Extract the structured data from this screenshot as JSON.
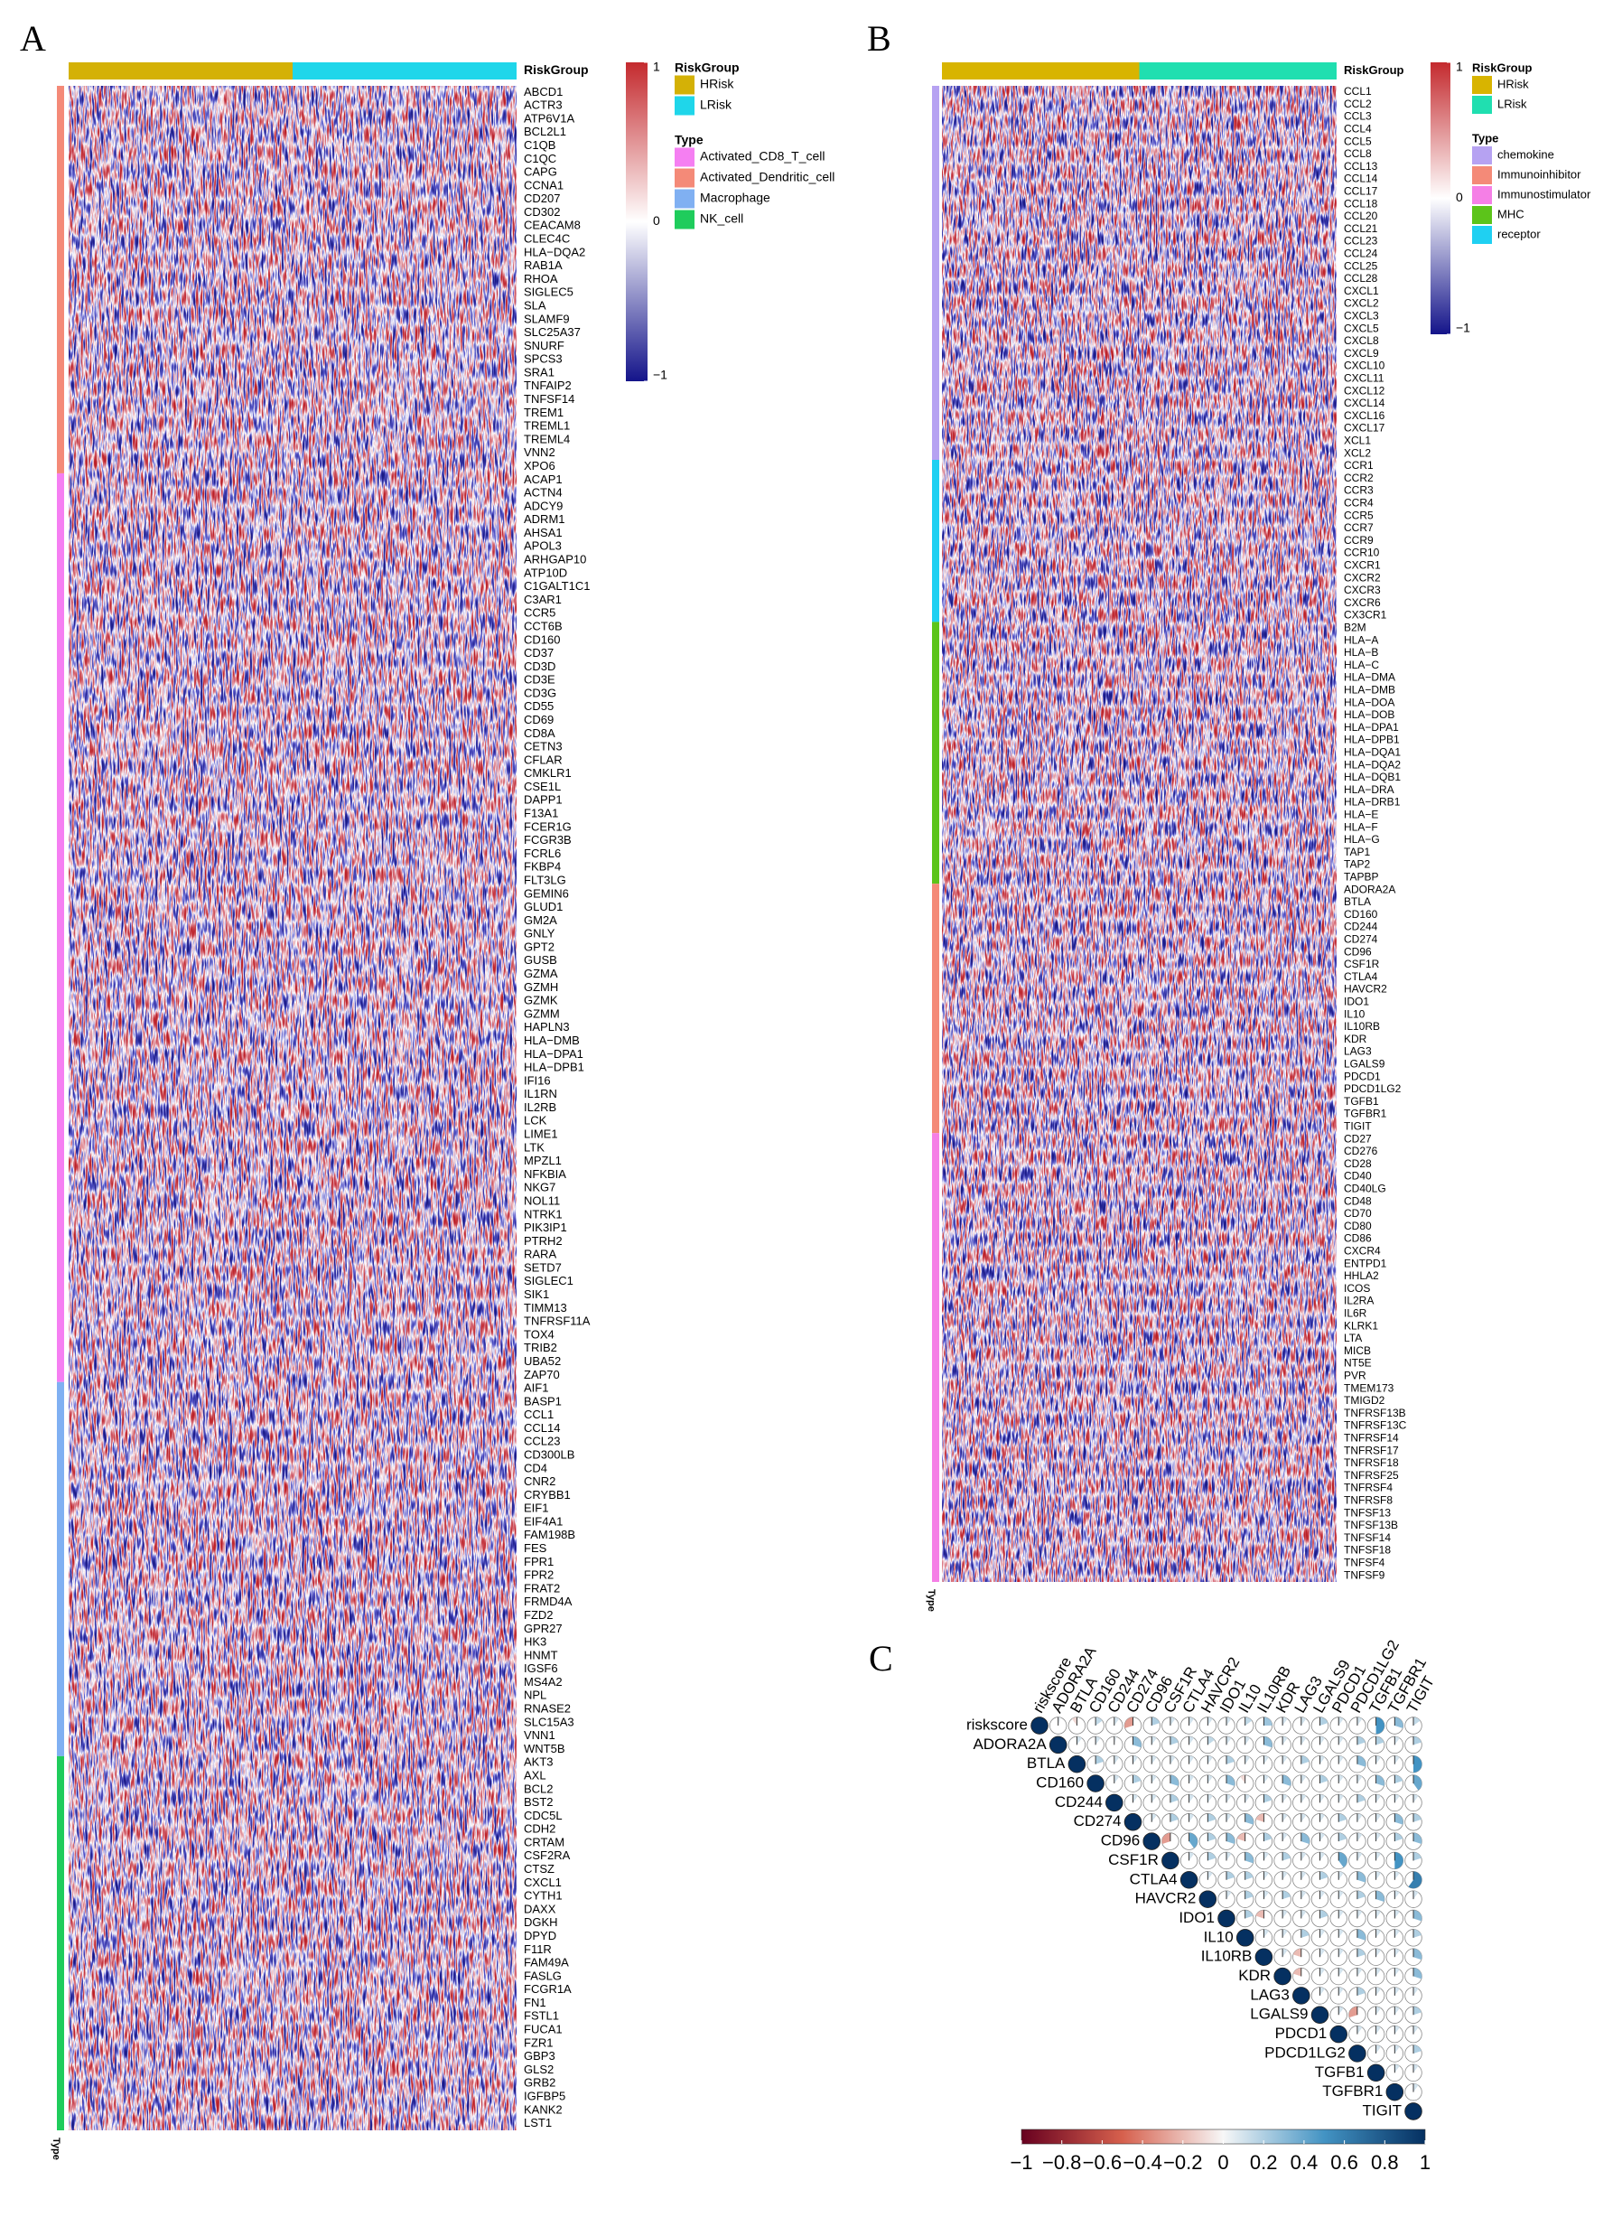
{
  "panel_labels": [
    "A",
    "B",
    "C"
  ],
  "chart_data": [
    {
      "type": "heatmap",
      "risk_title": "RiskGroup",
      "type_title": "Type",
      "risk_groups": [
        {
          "name": "HRisk",
          "color": "#d4b106"
        },
        {
          "name": "LRisk",
          "color": "#1fd6ea"
        }
      ],
      "type_legend": [
        {
          "name": "Activated_CD8_T_cell",
          "color": "#f57ff2"
        },
        {
          "name": "Activated_Dendritic_cell",
          "color": "#f48a78"
        },
        {
          "name": "Macrophage",
          "color": "#80b0f2"
        },
        {
          "name": "NK_cell",
          "color": "#1fcc5c"
        }
      ],
      "row_blocks": [
        {
          "type": "Activated_Dendritic_cell",
          "genes": [
            "ABCD1",
            "ACTR3",
            "ATP6V1A",
            "BCL2L1",
            "C1QB",
            "C1QC",
            "CAPG",
            "CCNA1",
            "CD207",
            "CD302",
            "CEACAM8",
            "CLEC4C",
            "HLA−DQA2",
            "RAB1A",
            "RHOA",
            "SIGLEC5",
            "SLA",
            "SLAMF9",
            "SLC25A37",
            "SNURF",
            "SPCS3",
            "SRA1",
            "TNFAIP2",
            "TNFSF14",
            "TREM1",
            "TREML1",
            "TREML4",
            "VNN2",
            "XPO6"
          ]
        },
        {
          "type": "Activated_CD8_T_cell",
          "genes": [
            "ACAP1",
            "ACTN4",
            "ADCY9",
            "ADRM1",
            "AHSA1",
            "APOL3",
            "ARHGAP10",
            "ATP10D",
            "C1GALT1C1",
            "C3AR1",
            "CCR5",
            "CCT6B",
            "CD160",
            "CD37",
            "CD3D",
            "CD3E",
            "CD3G",
            "CD55",
            "CD69",
            "CD8A",
            "CETN3",
            "CFLAR",
            "CMKLR1",
            "CSE1L",
            "DAPP1",
            "F13A1",
            "FCER1G",
            "FCGR3B",
            "FCRL6",
            "FKBP4",
            "FLT3LG",
            "GEMIN6",
            "GLUD1",
            "GM2A",
            "GNLY",
            "GPT2",
            "GUSB",
            "GZMA",
            "GZMH",
            "GZMK",
            "GZMM",
            "HAPLN3",
            "HLA−DMB",
            "HLA−DPA1",
            "HLA−DPB1",
            "IFI16",
            "IL1RN",
            "IL2RB",
            "LCK",
            "LIME1",
            "LTK",
            "MPZL1",
            "NFKBIA",
            "NKG7",
            "NOL11",
            "NTRK1",
            "PIK3IP1",
            "PTRH2",
            "RARA",
            "SETD7",
            "SIGLEC1",
            "SIK1",
            "TIMM13",
            "TNFRSF11A",
            "TOX4",
            "TRIB2",
            "UBA52",
            "ZAP70"
          ]
        },
        {
          "type": "Macrophage",
          "genes": [
            "AIF1",
            "BASP1",
            "CCL1",
            "CCL14",
            "CCL23",
            "CD300LB",
            "CD4",
            "CNR2",
            "CRYBB1",
            "EIF1",
            "EIF4A1",
            "FAM198B",
            "FES",
            "FPR1",
            "FPR2",
            "FRAT2",
            "FRMD4A",
            "FZD2",
            "GPR27",
            "HK3",
            "HNMT",
            "IGSF6",
            "MS4A2",
            "NPL",
            "RNASE2",
            "SLC15A3",
            "VNN1",
            "WNT5B"
          ]
        },
        {
          "type": "NK_cell",
          "genes": [
            "AKT3",
            "AXL",
            "BCL2",
            "BST2",
            "CDC5L",
            "CDH2",
            "CRTAM",
            "CSF2RA",
            "CTSZ",
            "CXCL1",
            "CYTH1",
            "DAXX",
            "DGKH",
            "DPYD",
            "F11R",
            "FAM49A",
            "FASLG",
            "FCGR1A",
            "FN1",
            "FSTL1",
            "FUCA1",
            "FZR1",
            "GBP3",
            "GLS2",
            "GRB2",
            "IGFBP5",
            "KANK2",
            "LST1"
          ]
        }
      ],
      "colorbar": {
        "lim": [
          -1,
          1
        ],
        "ticks": [
          1,
          0,
          {
            "value": -1,
            "label": "−1"
          }
        ],
        "colors": [
          "#14148a",
          "#ffffff",
          "#c42a2e"
        ]
      }
    },
    {
      "type": "heatmap",
      "risk_title": "RiskGroup",
      "type_title": "Type",
      "risk_groups": [
        {
          "name": "HRisk",
          "color": "#d8b400"
        },
        {
          "name": "LRisk",
          "color": "#20dfb0"
        }
      ],
      "type_legend": [
        {
          "name": "chemokine",
          "color": "#b6a2f2"
        },
        {
          "name": "Immunoinhibitor",
          "color": "#f48a78"
        },
        {
          "name": "Immunostimulator",
          "color": "#f57fe6"
        },
        {
          "name": "MHC",
          "color": "#5cc41a"
        },
        {
          "name": "receptor",
          "color": "#1fd0f2"
        }
      ],
      "row_blocks": [
        {
          "type": "chemokine",
          "genes": [
            "CCL1",
            "CCL2",
            "CCL3",
            "CCL4",
            "CCL5",
            "CCL8",
            "CCL13",
            "CCL14",
            "CCL17",
            "CCL18",
            "CCL20",
            "CCL21",
            "CCL23",
            "CCL24",
            "CCL25",
            "CCL28",
            "CXCL1",
            "CXCL2",
            "CXCL3",
            "CXCL5",
            "CXCL8",
            "CXCL9",
            "CXCL10",
            "CXCL11",
            "CXCL12",
            "CXCL14",
            "CXCL16",
            "CXCL17",
            "XCL1",
            "XCL2"
          ]
        },
        {
          "type": "receptor",
          "genes": [
            "CCR1",
            "CCR2",
            "CCR3",
            "CCR4",
            "CCR5",
            "CCR7",
            "CCR9",
            "CCR10",
            "CXCR1",
            "CXCR2",
            "CXCR3",
            "CXCR6",
            "CX3CR1"
          ]
        },
        {
          "type": "MHC",
          "genes": [
            "B2M",
            "HLA−A",
            "HLA−B",
            "HLA−C",
            "HLA−DMA",
            "HLA−DMB",
            "HLA−DOA",
            "HLA−DOB",
            "HLA−DPA1",
            "HLA−DPB1",
            "HLA−DQA1",
            "HLA−DQA2",
            "HLA−DQB1",
            "HLA−DRA",
            "HLA−DRB1",
            "HLA−E",
            "HLA−F",
            "HLA−G",
            "TAP1",
            "TAP2",
            "TAPBP"
          ]
        },
        {
          "type": "Immunoinhibitor",
          "genes": [
            "ADORA2A",
            "BTLA",
            "CD160",
            "CD244",
            "CD274",
            "CD96",
            "CSF1R",
            "CTLA4",
            "HAVCR2",
            "IDO1",
            "IL10",
            "IL10RB",
            "KDR",
            "LAG3",
            "LGALS9",
            "PDCD1",
            "PDCD1LG2",
            "TGFB1",
            "TGFBR1",
            "TIGIT"
          ]
        },
        {
          "type": "Immunostimulator",
          "genes": [
            "CD27",
            "CD276",
            "CD28",
            "CD40",
            "CD40LG",
            "CD48",
            "CD70",
            "CD80",
            "CD86",
            "CXCR4",
            "ENTPD1",
            "HHLA2",
            "ICOS",
            "IL2RA",
            "IL6R",
            "KLRK1",
            "LTA",
            "MICB",
            "NT5E",
            "PVR",
            "TMEM173",
            "TMIGD2",
            "TNFRSF13B",
            "TNFRSF13C",
            "TNFRSF14",
            "TNFRSF17",
            "TNFRSF18",
            "TNFRSF25",
            "TNFRSF4",
            "TNFRSF8",
            "TNFSF13",
            "TNFSF13B",
            "TNFSF14",
            "TNFSF18",
            "TNFSF4",
            "TNFSF9"
          ]
        }
      ],
      "colorbar": {
        "lim": [
          -1,
          1
        ],
        "ticks": [
          1,
          0,
          {
            "value": -1,
            "label": "−1"
          }
        ],
        "colors": [
          "#14148a",
          "#ffffff",
          "#c42a2e"
        ]
      }
    },
    {
      "type": "correlogram",
      "variables": [
        "riskscore",
        "ADORA2A",
        "BTLA",
        "CD160",
        "CD244",
        "CD274",
        "CD96",
        "CSF1R",
        "CTLA4",
        "HAVCR2",
        "IDO1",
        "IL10",
        "IL10RB",
        "KDR",
        "LAG3",
        "LGALS9",
        "PDCD1",
        "PDCD1LG2",
        "TGFB1",
        "TGFBR1",
        "TIGIT"
      ],
      "upper": [
        [
          1,
          0.05,
          -0.1,
          0.15,
          0.1,
          -0.3,
          0.2,
          0.1,
          0.1,
          0.1,
          0.1,
          0.15,
          0.25,
          0.1,
          0.1,
          0.2,
          0.1,
          0.1,
          0.5,
          0.3,
          0.15
        ],
        [
          1,
          0.1,
          0.1,
          0.05,
          0.3,
          0.1,
          0.2,
          0.1,
          0.15,
          0.1,
          0.1,
          0.3,
          0.1,
          0.1,
          0.1,
          0.1,
          0.2,
          0.2,
          0.1,
          0.2
        ],
        [
          1,
          0.2,
          0.1,
          0.1,
          0.1,
          0.1,
          0.1,
          0.1,
          0.2,
          0.1,
          0.1,
          0.1,
          0.2,
          0.1,
          0.1,
          0.3,
          0.1,
          0.1,
          0.5
        ],
        [
          1,
          0.1,
          0.2,
          0.1,
          0.3,
          0.1,
          0.1,
          0.3,
          -0.1,
          0.1,
          0.3,
          0.1,
          0.2,
          0.1,
          0.1,
          0.3,
          0.2,
          0.4
        ],
        [
          1,
          0.1,
          0.1,
          0.2,
          0.1,
          0.1,
          0.1,
          0.1,
          0.2,
          0.1,
          0.1,
          0.1,
          0.1,
          0.2,
          0.1,
          0.1,
          0.1
        ],
        [
          1,
          0.1,
          0.2,
          0.1,
          0.2,
          0.1,
          0.3,
          -0.2,
          0.1,
          0.1,
          0.1,
          0.2,
          0.1,
          0.1,
          0.3,
          0.2
        ],
        [
          1,
          -0.3,
          0.4,
          0.2,
          0.3,
          -0.2,
          0.2,
          0.1,
          0.3,
          0.1,
          0.2,
          0.1,
          0.1,
          0.2,
          0.3
        ],
        [
          1,
          0.1,
          0.2,
          0.1,
          0.3,
          0.1,
          0.2,
          0.1,
          0.1,
          0.4,
          0.1,
          0.1,
          0.5,
          0.2
        ],
        [
          1,
          0.1,
          0.2,
          0.2,
          0.1,
          0.1,
          0.1,
          0.2,
          0.1,
          0.3,
          0.1,
          0.1,
          0.6
        ],
        [
          1,
          0.1,
          0.2,
          0.1,
          0.2,
          0.1,
          0.1,
          0.1,
          0.2,
          0.3,
          0.1,
          0.1
        ],
        [
          1,
          0.2,
          -0.2,
          0.1,
          0.1,
          0.2,
          0.1,
          0.1,
          0.1,
          0.1,
          0.3
        ],
        [
          1,
          0.1,
          0.1,
          0.2,
          0.1,
          0.1,
          0.3,
          0.1,
          0.1,
          0.2
        ],
        [
          1,
          0.1,
          -0.2,
          0.1,
          0.1,
          0.2,
          0.1,
          0.1,
          0.3
        ],
        [
          1,
          -0.2,
          0.1,
          0.1,
          0.1,
          0.1,
          0.1,
          0.3
        ],
        [
          1,
          0.1,
          0.1,
          0.2,
          0.1,
          0.1,
          0.1
        ],
        [
          1,
          0.1,
          -0.3,
          0.1,
          0.1,
          0.2
        ],
        [
          1,
          0.1,
          0.1,
          0.1,
          0.1
        ],
        [
          1,
          0.1,
          0.1,
          0.2
        ],
        [
          1,
          0.1,
          0.1
        ],
        [
          1,
          0.1
        ],
        [
          1
        ]
      ],
      "colorbar": {
        "lim": [
          -1,
          1
        ],
        "colors": [
          "#67001f",
          "#d6604d",
          "#f7f7f7",
          "#4393c3",
          "#053061"
        ],
        "ticks": [
          {
            "value": -1,
            "label": "−1"
          },
          {
            "value": -0.8,
            "label": "−0.8"
          },
          {
            "value": -0.6,
            "label": "−0.6"
          },
          {
            "value": -0.4,
            "label": "−0.4"
          },
          {
            "value": -0.2,
            "label": "−0.2"
          },
          0,
          0.2,
          0.4,
          0.6,
          0.8,
          1
        ]
      }
    }
  ]
}
